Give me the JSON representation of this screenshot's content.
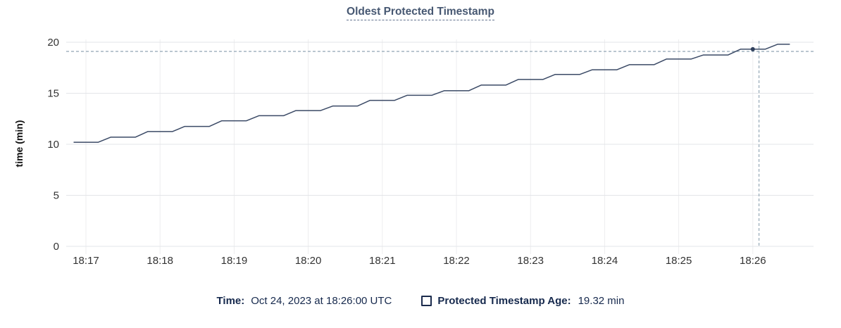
{
  "title": "Oldest Protected Timestamp",
  "colors": {
    "title": "#475872",
    "line": "#3b4a66",
    "dot": "#2e3f5c",
    "crosshair": "#9caebb",
    "grid_h": "#e3e5e8",
    "grid_v": "#ededef",
    "tick_label": "#333333",
    "axis_title": "#111111",
    "legend_text": "#16294d"
  },
  "y_axis": {
    "title": "time (min)",
    "ticks": [
      0,
      5,
      10,
      15,
      20
    ]
  },
  "x_axis": {
    "ticks": [
      "18:17",
      "18:18",
      "18:19",
      "18:20",
      "18:21",
      "18:22",
      "18:23",
      "18:24",
      "18:25",
      "18:26"
    ]
  },
  "chart_data": {
    "type": "line",
    "title": "Oldest Protected Timestamp",
    "xlabel": "",
    "ylabel": "time (min)",
    "ylim": [
      0,
      20
    ],
    "x_start_time": "18:16:50",
    "x_interval_seconds": 10,
    "unit": "min",
    "series": [
      {
        "name": "Protected Timestamp Age",
        "values": [
          10.2,
          10.2,
          10.2,
          10.7,
          10.7,
          10.7,
          11.25,
          11.25,
          11.25,
          11.75,
          11.75,
          11.75,
          12.3,
          12.3,
          12.3,
          12.8,
          12.8,
          12.8,
          13.3,
          13.3,
          13.3,
          13.75,
          13.75,
          13.75,
          14.3,
          14.3,
          14.3,
          14.8,
          14.8,
          14.8,
          15.25,
          15.25,
          15.25,
          15.8,
          15.8,
          15.8,
          16.35,
          16.35,
          16.35,
          16.85,
          16.85,
          16.85,
          17.3,
          17.3,
          17.3,
          17.8,
          17.8,
          17.8,
          18.35,
          18.35,
          18.35,
          18.75,
          18.75,
          18.75,
          19.32,
          19.32,
          19.32,
          19.8,
          19.8
        ]
      }
    ],
    "grid": true,
    "legend_position": "bottom",
    "hover": {
      "snapped_time": "18:26:00",
      "snapped_value": 19.32,
      "cursor_time": "18:26:05",
      "cursor_value": 19.1
    }
  },
  "legend": {
    "time_label": "Time:",
    "time_value": "Oct 24, 2023 at 18:26:00 UTC",
    "series_label": "Protected Timestamp Age:",
    "series_value": "19.32 min"
  }
}
